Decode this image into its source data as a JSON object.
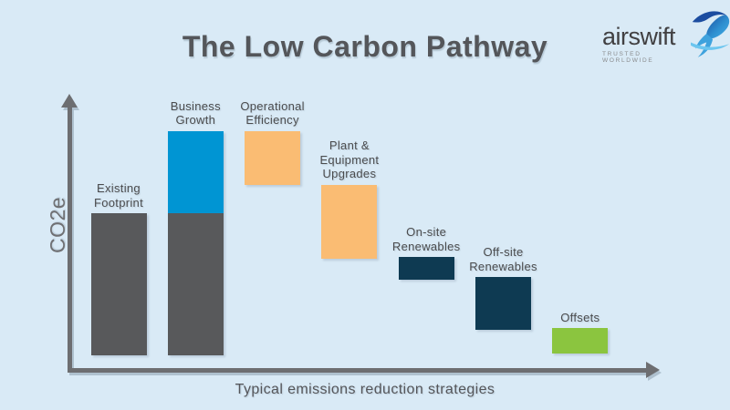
{
  "title": "The Low Carbon Pathway",
  "logo": {
    "brand": "airswift",
    "tagline": "TRUSTED WORLDWIDE"
  },
  "axes": {
    "y_label": "CO2e",
    "x_label": "Typical emissions reduction strategies"
  },
  "colors": {
    "background": "#d9eaf6",
    "bar_gray": "#58595b",
    "bar_blue": "#0095d3",
    "bar_orange": "#fabc73",
    "bar_navy": "#0e3a52",
    "bar_green": "#8bc53f",
    "axis": "#6d6e71",
    "label_text": "#4b4c4e",
    "title_text": "#54565a"
  },
  "chart_data": {
    "type": "bar",
    "subtype": "waterfall",
    "title": "The Low Carbon Pathway",
    "xlabel": "Typical emissions reduction strategies",
    "ylabel": "CO2e",
    "legend": false,
    "grid": false,
    "numeric_axis_labels_shown": false,
    "units": "relative CO2e, estimated from bar geometry (Existing Footprint = 100)",
    "ylim": [
      0,
      170
    ],
    "categories": [
      "Existing Footprint",
      "Business Growth",
      "Operational Efficiency",
      "Plant & Equipment Upgrades",
      "On-site Renewables",
      "Off-site Renewables",
      "Offsets"
    ],
    "bars": [
      {
        "id": "existing-footprint",
        "label_lines": [
          "Existing",
          "Footprint"
        ],
        "delta": 100,
        "segments": [
          {
            "start": 0,
            "end": 100,
            "color": "gray"
          }
        ]
      },
      {
        "id": "business-growth",
        "label_lines": [
          "Business",
          "Growth"
        ],
        "delta": 58,
        "segments": [
          {
            "start": 100,
            "end": 158,
            "color": "blue"
          },
          {
            "start": 0,
            "end": 100,
            "color": "gray"
          }
        ]
      },
      {
        "id": "operational-efficiency",
        "label_lines": [
          "Operational",
          "Efficiency"
        ],
        "delta": -38,
        "segments": [
          {
            "start": 120,
            "end": 158,
            "color": "orange"
          }
        ]
      },
      {
        "id": "plant-equipment-upgrades",
        "label_lines": [
          "Plant &",
          "Equipment",
          "Upgrades"
        ],
        "delta": -52,
        "segments": [
          {
            "start": 68,
            "end": 120,
            "color": "orange"
          }
        ]
      },
      {
        "id": "on-site-renewables",
        "label_lines": [
          "On-site",
          "Renewables"
        ],
        "delta": -16,
        "segments": [
          {
            "start": 53,
            "end": 69,
            "color": "navy"
          }
        ]
      },
      {
        "id": "off-site-renewables",
        "label_lines": [
          "Off-site",
          "Renewables"
        ],
        "delta": -37,
        "segments": [
          {
            "start": 18,
            "end": 55,
            "color": "navy"
          }
        ]
      },
      {
        "id": "offsets",
        "label_lines": [
          "Offsets"
        ],
        "delta": -18,
        "segments": [
          {
            "start": 1,
            "end": 19,
            "color": "green"
          }
        ]
      }
    ]
  }
}
